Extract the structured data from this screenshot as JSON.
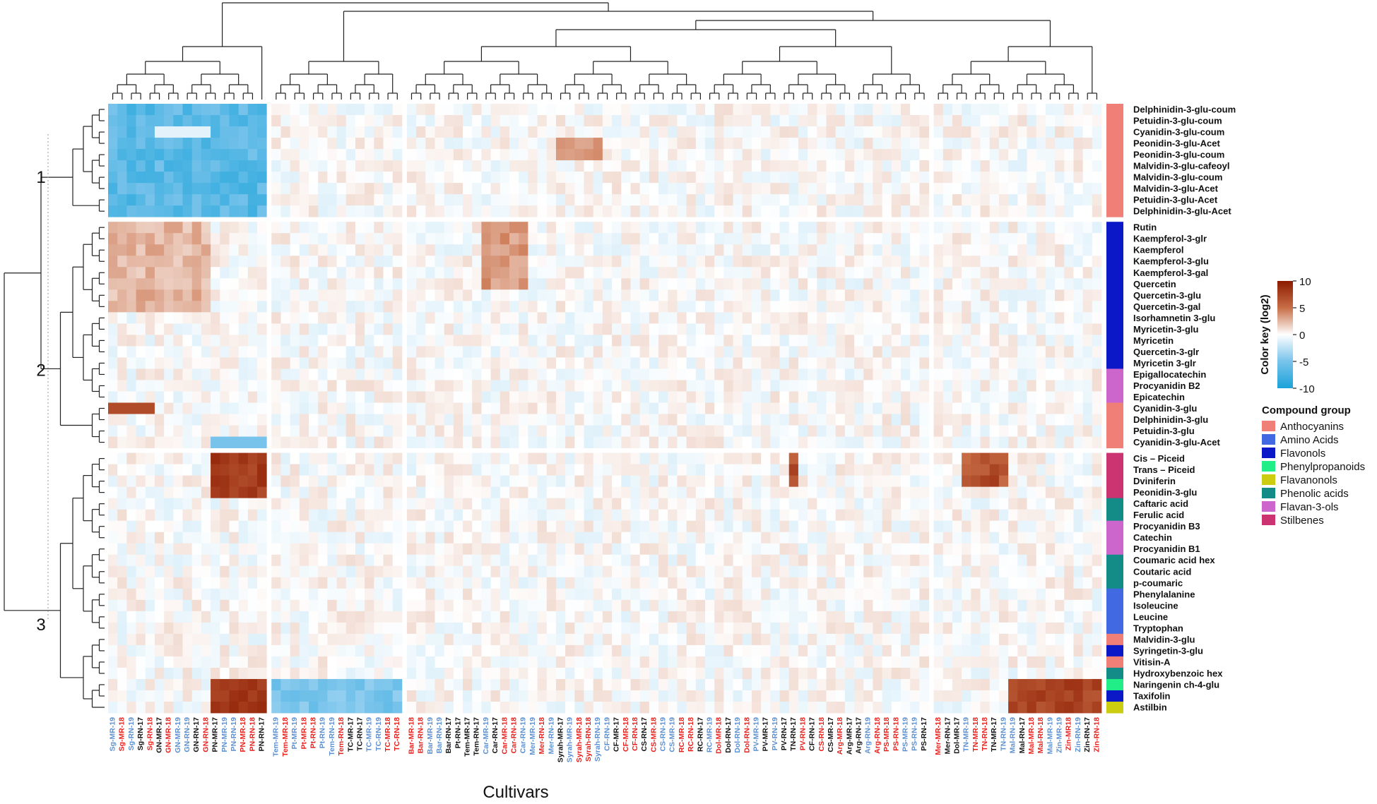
{
  "chart_data": {
    "type": "heatmap",
    "xlabel": "Cultivars",
    "color_key": {
      "title": "Color key  (log2)",
      "ticks": [
        10,
        5,
        0,
        -5,
        -10
      ],
      "range": [
        -10,
        10
      ],
      "low_color": "#1aa3d9",
      "mid_color": "#ffffff",
      "high_color": "#8b1a00"
    },
    "legend": {
      "title": "Compound group",
      "position": "right",
      "groups": [
        {
          "name": "Anthocyanins",
          "color": "#f07f78"
        },
        {
          "name": "Amino Acids",
          "color": "#4169e1"
        },
        {
          "name": "Flavonols",
          "color": "#0b18c8"
        },
        {
          "name": "Phenylpropanoids",
          "color": "#22ee88"
        },
        {
          "name": "Flavanonols",
          "color": "#cccc11"
        },
        {
          "name": "Phenolic acids",
          "color": "#138b86"
        },
        {
          "name": "Flavan-3-ols",
          "color": "#cc66cc"
        },
        {
          "name": "Stilbenes",
          "color": "#cc3371"
        }
      ]
    },
    "cluster_labels": [
      "1",
      "2",
      "3"
    ],
    "rows": [
      {
        "name": "Delphinidin-3-glu-coum",
        "group": "Anthocyanins"
      },
      {
        "name": "Petuidin-3-glu-coum",
        "group": "Anthocyanins"
      },
      {
        "name": "Cyanidin-3-glu-coum",
        "group": "Anthocyanins"
      },
      {
        "name": "Peonidin-3-glu-Acet",
        "group": "Anthocyanins"
      },
      {
        "name": "Peonidin-3-glu-coum",
        "group": "Anthocyanins"
      },
      {
        "name": "Malvidin-3-glu-cafeoyl",
        "group": "Anthocyanins"
      },
      {
        "name": "Malvidin-3-glu-coum",
        "group": "Anthocyanins"
      },
      {
        "name": "Malvidin-3-glu-Acet",
        "group": "Anthocyanins"
      },
      {
        "name": "Petuidin-3-glu-Acet",
        "group": "Anthocyanins"
      },
      {
        "name": "Delphinidin-3-glu-Acet",
        "group": "Anthocyanins"
      },
      {
        "name": "Rutin",
        "group": "Flavonols"
      },
      {
        "name": "Kaempferol-3-glr",
        "group": "Flavonols"
      },
      {
        "name": "Kaempferol",
        "group": "Flavonols"
      },
      {
        "name": "Kaempferol-3-glu",
        "group": "Flavonols"
      },
      {
        "name": "Kaempferol-3-gal",
        "group": "Flavonols"
      },
      {
        "name": "Quercetin",
        "group": "Flavonols"
      },
      {
        "name": "Quercetin-3-glu",
        "group": "Flavonols"
      },
      {
        "name": "Quercetin-3-gal",
        "group": "Flavonols"
      },
      {
        "name": "Isorhamnetin 3-glu",
        "group": "Flavonols"
      },
      {
        "name": "Myricetin-3-glu",
        "group": "Flavonols"
      },
      {
        "name": "Myricetin",
        "group": "Flavonols"
      },
      {
        "name": "Quercetin-3-glr",
        "group": "Flavonols"
      },
      {
        "name": "Myricetin 3-glr",
        "group": "Flavonols"
      },
      {
        "name": "Epigallocatechin",
        "group": "Flavan-3-ols"
      },
      {
        "name": "Procyanidin B2",
        "group": "Flavan-3-ols"
      },
      {
        "name": "Epicatechin",
        "group": "Flavan-3-ols"
      },
      {
        "name": "Cyanidin-3-glu",
        "group": "Anthocyanins"
      },
      {
        "name": "Delphinidin-3-glu",
        "group": "Anthocyanins"
      },
      {
        "name": "Petuidin-3-glu",
        "group": "Anthocyanins"
      },
      {
        "name": "Cyanidin-3-glu-Acet",
        "group": "Anthocyanins"
      },
      {
        "name": "Cis – Piceid",
        "group": "Stilbenes"
      },
      {
        "name": "Trans – Piceid",
        "group": "Stilbenes"
      },
      {
        "name": "Dviniferin",
        "group": "Stilbenes"
      },
      {
        "name": "Peonidin-3-glu",
        "group": "Stilbenes"
      },
      {
        "name": "Caftaric acid",
        "group": "Phenolic acids"
      },
      {
        "name": "Ferulic acid",
        "group": "Phenolic acids"
      },
      {
        "name": "Procyanidin B3",
        "group": "Flavan-3-ols"
      },
      {
        "name": "Catechin",
        "group": "Flavan-3-ols"
      },
      {
        "name": "Procyanidin B1",
        "group": "Flavan-3-ols"
      },
      {
        "name": "Coumaric acid hex",
        "group": "Phenolic acids"
      },
      {
        "name": "Coutaric acid",
        "group": "Phenolic acids"
      },
      {
        "name": "p-coumaric",
        "group": "Phenolic acids"
      },
      {
        "name": "Phenylalanine",
        "group": "Amino Acids"
      },
      {
        "name": "Isoleucine",
        "group": "Amino Acids"
      },
      {
        "name": "Leucine",
        "group": "Amino Acids"
      },
      {
        "name": "Tryptophan",
        "group": "Amino Acids"
      },
      {
        "name": "Malvidin-3-glu",
        "group": "Anthocyanins"
      },
      {
        "name": "Syringetin-3-glu",
        "group": "Flavonols"
      },
      {
        "name": "Vitisin-A",
        "group": "Anthocyanins"
      },
      {
        "name": "Hydroxybenzoic hex",
        "group": "Phenolic acids"
      },
      {
        "name": "Naringenin ch-4-glu",
        "group": "Phenylpropanoids"
      },
      {
        "name": "Taxifolin",
        "group": "Flavonols"
      },
      {
        "name": "Astilbin",
        "group": "Flavanonols"
      }
    ],
    "column_clusters": [
      [
        "Sg-MR-19",
        "Sg-MR-18",
        "Sg-RN-19",
        "Sg-RN-17",
        "Sg-RN-18",
        "GN-MR-17",
        "GN-MR-18",
        "GN-MR-19",
        "GN-RN-19",
        "GN-RN-17",
        "GN-RN-18",
        "PN-MR-17",
        "PN-MR-19",
        "PN-RN-19",
        "PN-MR-18",
        "PN-RN-18",
        "PN-RN-17"
      ],
      [
        "Tem-MR-19",
        "Tem-MR-18",
        "Pt-MR-19",
        "Pt-MR-18",
        "Pt-RN-18",
        "Pt-RN-19",
        "Tem-RN-19",
        "Tem-RN-18",
        "TC-MR-17",
        "TC-RN-17",
        "TC-MR-19",
        "TC-RN-19",
        "TC-MR-18",
        "TC-RN-18"
      ],
      [
        "Bar-MR-18",
        "Bar-RN-18",
        "Bar-MR-19",
        "Bar-RN-19",
        "Bar-RN-17",
        "Pt-RN-17",
        "Tem-MR-17",
        "Tem-RN-17",
        "Car-MR-19",
        "Car-RN-17",
        "Car-MR-18",
        "Car-RN-18",
        "Car-RN-19",
        "Mer-MR-19",
        "Mer-RN-18",
        "Mer-RN-19",
        "Syrah-MR-17",
        "Syrah-MR-19",
        "Syrah-MR-18",
        "Syrah-RN-18",
        "Syrah-RN-19",
        "CF-RN-19",
        "CF-MR-17",
        "CF-MR-18",
        "CF-RN-18",
        "CS-RN-17",
        "CS-MR-18",
        "CS-RN-19",
        "CS-MR-19",
        "RC-MR-18",
        "RC-RN-18",
        "RC-RN-17",
        "RC-MR-19",
        "Dol-MR-18",
        "Dol-RN-17",
        "Dol-RN-19",
        "Dol-RN-18",
        "PV-MR-19",
        "PV-MR-17",
        "PV-RN-19",
        "PV-RN-17",
        "TN-RN-17",
        "PV-RN-18",
        "CF-RN-17",
        "CS-RN-18",
        "CS-MR-17",
        "Arg-MR-18",
        "Arg-MR-17",
        "Arg-RN-17",
        "Arg-RN-19",
        "Arg-RN-18",
        "PS-MR-18",
        "PS-RN-18",
        "PS-MR-19",
        "PS-RN-19",
        "PS-RN-17"
      ],
      [
        "Mer-MR-18",
        "Mer-RN-17",
        "Dol-MR-17",
        "TN-MR-19",
        "TN-MR-18",
        "TN-RN-18",
        "TN-MR-17",
        "TN-RN-19",
        "Mal-RN-19",
        "Mal-RN-17",
        "Mal-MR-18",
        "Mal-RN-18",
        "Mal-MR-19",
        "Zin-MR-19",
        "Zin-MR18",
        "Zin-RN-19",
        "Zin-RN-17",
        "Zin-RN-18"
      ]
    ]
  }
}
